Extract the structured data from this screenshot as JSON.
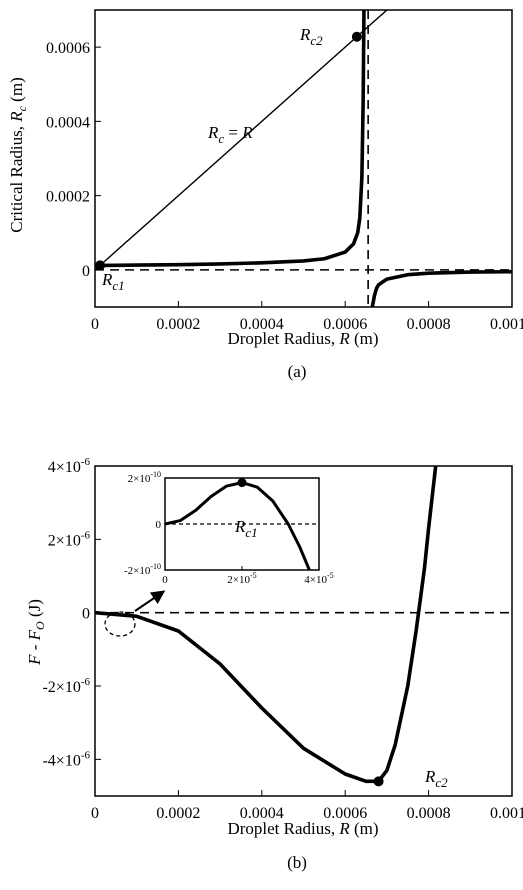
{
  "chart_data": [
    {
      "type": "line",
      "panel_label": "(a)",
      "xlabel": {
        "prefix": "Droplet Radius, ",
        "sym": "R",
        "unit": " (m)"
      },
      "ylabel": {
        "prefix": "Critical Radius, ",
        "sym": "R",
        "sub": "c",
        "unit": " (m)"
      },
      "xlim": [
        0,
        0.001
      ],
      "ylim": [
        -0.0001,
        0.0007
      ],
      "xticks": [
        {
          "value": 0,
          "label": "0"
        },
        {
          "value": 0.0002,
          "label": "0.0002"
        },
        {
          "value": 0.0004,
          "label": "0.0004"
        },
        {
          "value": 0.0006,
          "label": "0.0006"
        },
        {
          "value": 0.0008,
          "label": "0.0008"
        },
        {
          "value": 0.001,
          "label": "0.0010"
        }
      ],
      "yticks": [
        {
          "value": 0,
          "label": "0"
        },
        {
          "value": 0.0002,
          "label": "0.0002"
        },
        {
          "value": 0.0004,
          "label": "0.0004"
        },
        {
          "value": 0.0006,
          "label": "0.0006"
        }
      ],
      "series": [
        {
          "role": "critical-radius-branch-1",
          "style": "thick",
          "x": [
            0,
            2e-05,
            0.0001,
            0.0002,
            0.0003,
            0.0004,
            0.0005,
            0.00055,
            0.0006,
            0.00062,
            0.00063,
            0.000635,
            0.00064,
            0.000643,
            0.000645
          ],
          "y": [
            1.2e-05,
            1.2e-05,
            1.3e-05,
            1.4e-05,
            1.6e-05,
            1.9e-05,
            2.4e-05,
            3e-05,
            4.8e-05,
            7e-05,
            0.0001,
            0.00014,
            0.00025,
            0.00045,
            0.0007
          ]
        },
        {
          "role": "critical-radius-branch-2",
          "style": "thick",
          "x": [
            0.000665,
            0.00067,
            0.000675,
            0.00068,
            0.0007,
            0.00075,
            0.0008,
            0.0009,
            0.001
          ],
          "y": [
            -0.0001,
            -7e-05,
            -5e-05,
            -4e-05,
            -2.5e-05,
            -1.3e-05,
            -9e-06,
            -6e-06,
            -5e-06
          ]
        },
        {
          "role": "identity-line",
          "style": "thin",
          "x": [
            0,
            0.001
          ],
          "y": [
            0,
            0.001
          ]
        }
      ],
      "reference_lines": [
        {
          "orientation": "horizontal",
          "value": 0,
          "style": "dashed"
        },
        {
          "orientation": "vertical",
          "value": 0.000655,
          "style": "dashed"
        }
      ],
      "points": [
        {
          "x": 1.2e-05,
          "y": 1.2e-05
        },
        {
          "x": 0.000628,
          "y": 0.000628
        }
      ],
      "annotations": {
        "identity": {
          "a": "R",
          "a_sub": "c",
          "mid": " = ",
          "b": "R"
        },
        "rc1": {
          "sym": "R",
          "sub": "c1"
        },
        "rc2": {
          "sym": "R",
          "sub": "c2"
        }
      }
    },
    {
      "type": "line",
      "panel_label": "(b)",
      "xlabel": {
        "prefix": "Droplet Radius, ",
        "sym": "R",
        "unit": " (m)"
      },
      "ylabel": {
        "sym1": "F",
        "mid": " - ",
        "sym2": "F",
        "sub2": "O",
        "unit": " (J)"
      },
      "xlim": [
        0,
        0.001
      ],
      "ylim": [
        -5e-06,
        4e-06
      ],
      "xticks": [
        {
          "value": 0,
          "label": "0"
        },
        {
          "value": 0.0002,
          "label": "0.0002"
        },
        {
          "value": 0.0004,
          "label": "0.0004"
        },
        {
          "value": 0.0006,
          "label": "0.0006"
        },
        {
          "value": 0.0008,
          "label": "0.0008"
        },
        {
          "value": 0.001,
          "label": "0.0010"
        }
      ],
      "yticks": [
        {
          "value": 4e-06,
          "label": "4×10",
          "exp": "-6"
        },
        {
          "value": 2e-06,
          "label": "2×10",
          "exp": "-6"
        },
        {
          "value": 0,
          "label": "0",
          "exp": ""
        },
        {
          "value": -2e-06,
          "label": "-2×10",
          "exp": "-6"
        },
        {
          "value": -4e-06,
          "label": "-4×10",
          "exp": "-6"
        }
      ],
      "series": [
        {
          "role": "free-energy",
          "style": "thick",
          "x": [
            0,
            0.0001,
            0.0002,
            0.0003,
            0.0004,
            0.0005,
            0.0006,
            0.00065,
            0.00068,
            0.0007,
            0.00072,
            0.00075,
            0.00077,
            0.00079,
            0.0008,
            0.00081,
            0.00082
          ],
          "y": [
            0,
            -1e-07,
            -5e-07,
            -1.4e-06,
            -2.6e-06,
            -3.7e-06,
            -4.4e-06,
            -4.6e-06,
            -4.6e-06,
            -4.3e-06,
            -3.6e-06,
            -2e-06,
            -5e-07,
            1.2e-06,
            2.3e-06,
            3.3e-06,
            4.3e-06
          ]
        }
      ],
      "reference_lines": [
        {
          "orientation": "horizontal",
          "value": 0,
          "style": "dashed"
        }
      ],
      "points": [
        {
          "x": 0.00068,
          "y": -4.6e-06
        }
      ],
      "annotations": {
        "rc2": {
          "sym": "R",
          "sub": "c2"
        }
      },
      "inset": {
        "type": "line",
        "xlim": [
          0,
          4e-05
        ],
        "ylim": [
          -2e-10,
          2e-10
        ],
        "xticks": [
          {
            "value": 0,
            "label": "0",
            "exp": ""
          },
          {
            "value": 2e-05,
            "label": "2×10",
            "exp": "-5"
          },
          {
            "value": 4e-05,
            "label": "4×10",
            "exp": "-5"
          }
        ],
        "yticks": [
          {
            "value": 2e-10,
            "label": "2×10",
            "exp": "-10"
          },
          {
            "value": 0,
            "label": "0",
            "exp": ""
          },
          {
            "value": -2e-10,
            "label": "-2×10",
            "exp": "-10"
          }
        ],
        "series": [
          {
            "role": "free-energy-zoom",
            "style": "thick",
            "x": [
              0,
              4e-06,
              8e-06,
              1.2e-05,
              1.6e-05,
              2e-05,
              2.4e-05,
              2.8e-05,
              3.2e-05,
              3.5e-05,
              3.75e-05,
              4e-05
            ],
            "y": [
              0,
              1.5e-11,
              6e-11,
              1.2e-10,
              1.65e-10,
              1.8e-10,
              1.6e-10,
              1e-10,
              0.0,
              -1e-10,
              -2e-10,
              -3e-10
            ]
          }
        ],
        "reference_lines": [
          {
            "orientation": "horizontal",
            "value": 0,
            "style": "dotted"
          }
        ],
        "points": [
          {
            "x": 2e-05,
            "y": 1.8e-10
          }
        ],
        "annotations": {
          "rc1": {
            "sym": "R",
            "sub": "c1"
          }
        }
      }
    }
  ]
}
